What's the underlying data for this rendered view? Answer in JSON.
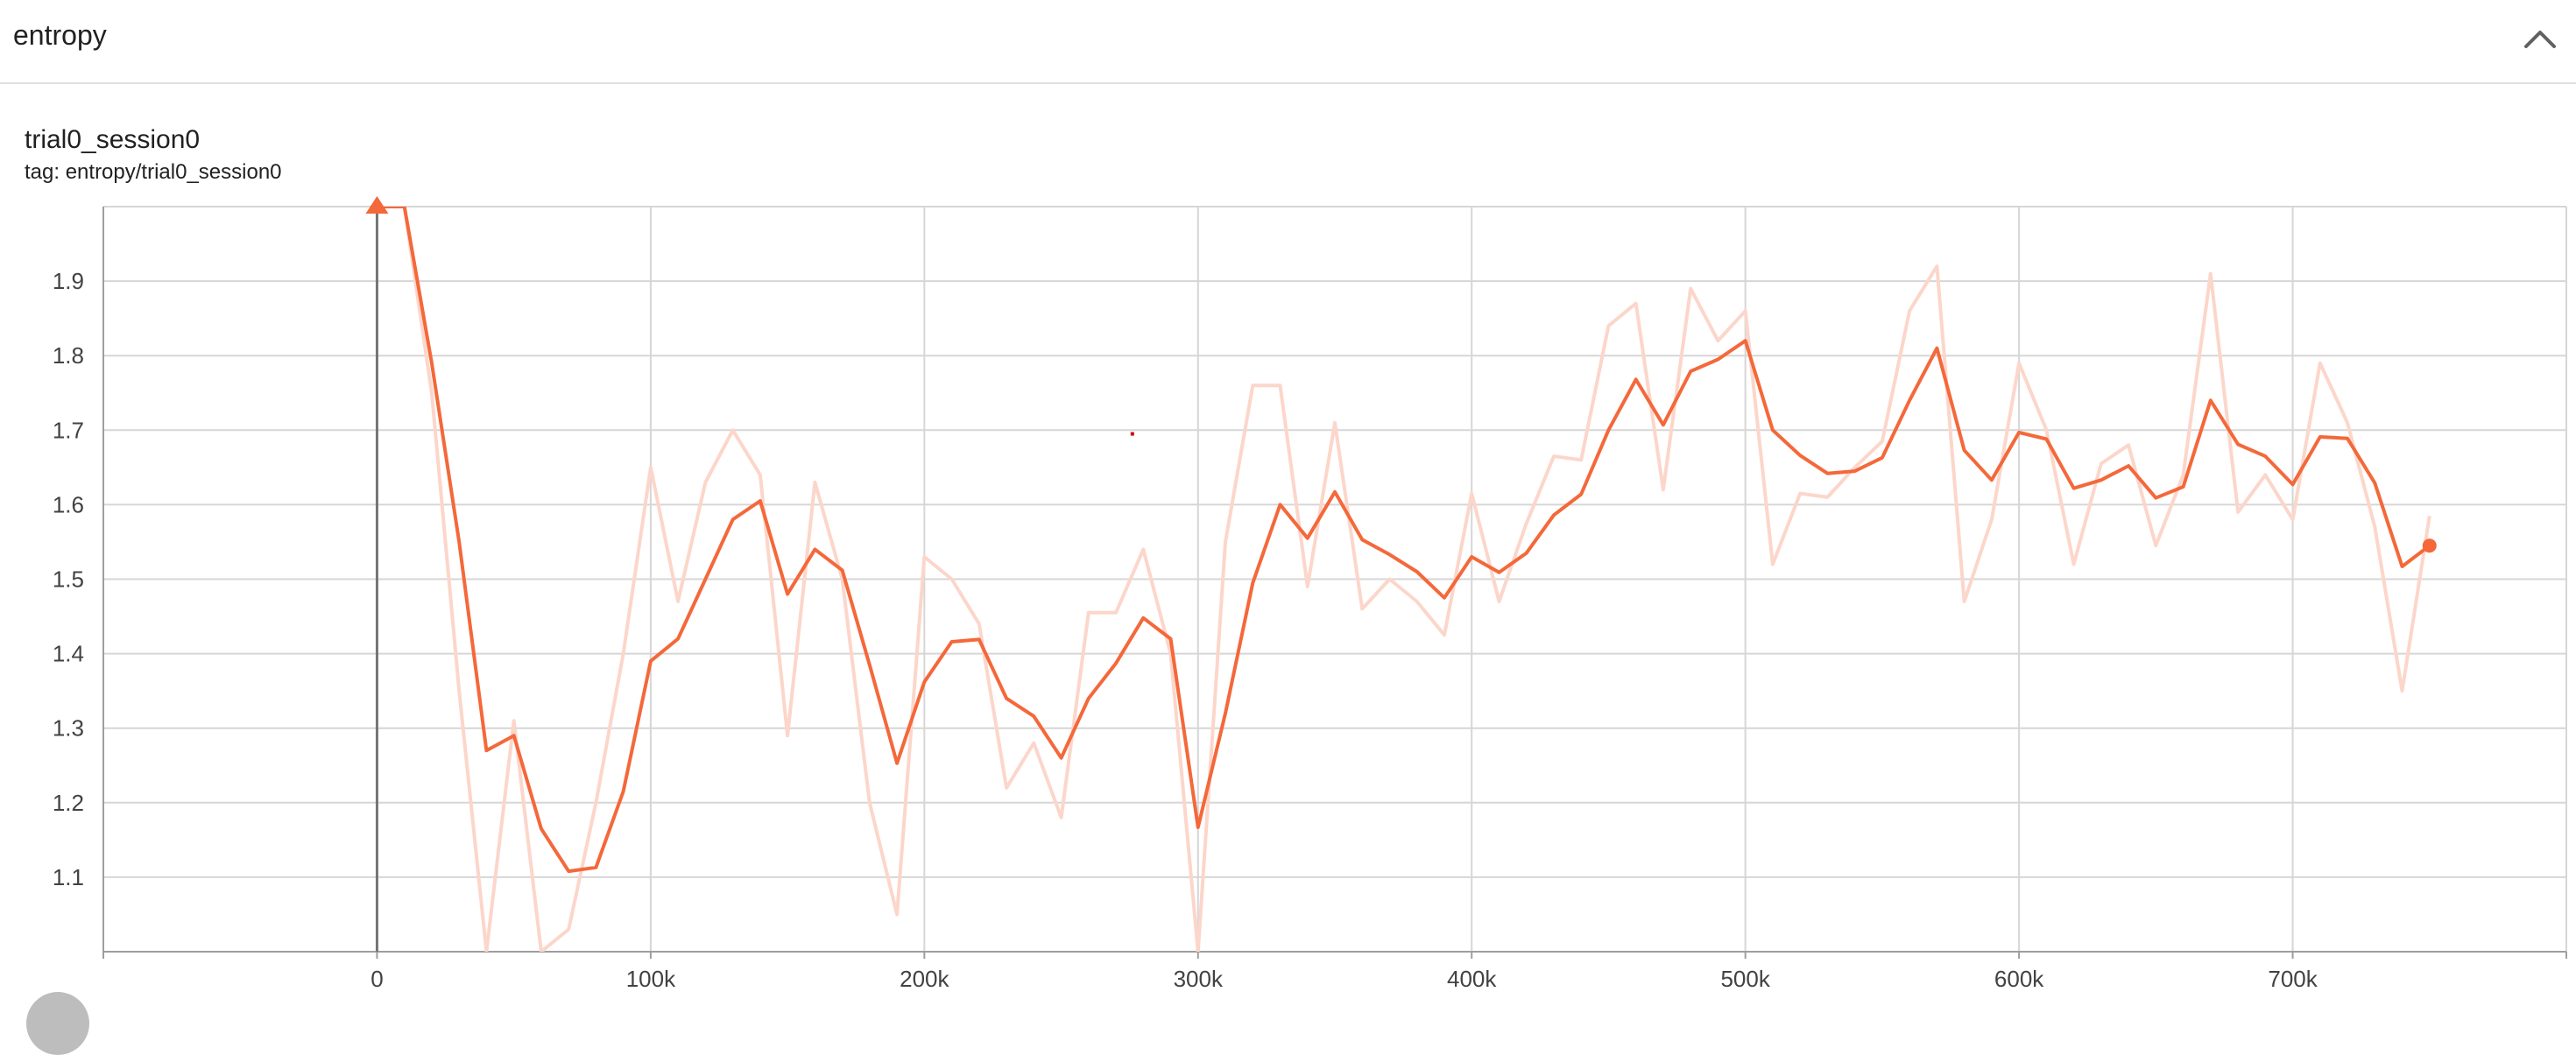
{
  "card": {
    "title": "entropy",
    "collapse_icon": "chevron-up-icon"
  },
  "run": {
    "title": "trial0_session0",
    "tag": "tag: entropy/trial0_session0"
  },
  "colors": {
    "smoothed": "#f4683a",
    "raw": "#fcd6ca",
    "grid": "#d6d6d6",
    "axis": "#9e9e9e",
    "zero_line": "#757575",
    "marker": "#cc0000"
  },
  "chart_data": {
    "type": "line",
    "title": "",
    "xlabel": "",
    "ylabel": "",
    "xlim": [
      -100000,
      800000
    ],
    "ylim": [
      1.0,
      2.0
    ],
    "grid": true,
    "x_ticks": [
      0,
      100000,
      200000,
      300000,
      400000,
      500000,
      600000,
      700000
    ],
    "x_tick_labels": [
      "0",
      "100k",
      "200k",
      "300k",
      "400k",
      "500k",
      "600k",
      "700k"
    ],
    "y_ticks": [
      1.1,
      1.2,
      1.3,
      1.4,
      1.5,
      1.6,
      1.7,
      1.8,
      1.9
    ],
    "y_tick_labels": [
      "1.1",
      "1.2",
      "1.3",
      "1.4",
      "1.5",
      "1.6",
      "1.7",
      "1.8",
      "1.9"
    ],
    "x": [
      0,
      10000,
      20000,
      30000,
      40000,
      50000,
      60000,
      70000,
      80000,
      90000,
      100000,
      110000,
      120000,
      130000,
      140000,
      150000,
      160000,
      170000,
      180000,
      190000,
      200000,
      210000,
      220000,
      230000,
      240000,
      250000,
      260000,
      270000,
      280000,
      290000,
      300000,
      310000,
      320000,
      330000,
      340000,
      350000,
      360000,
      370000,
      380000,
      390000,
      400000,
      410000,
      420000,
      430000,
      440000,
      450000,
      460000,
      470000,
      480000,
      490000,
      500000,
      510000,
      520000,
      530000,
      540000,
      550000,
      560000,
      570000,
      580000,
      590000,
      600000,
      610000,
      620000,
      630000,
      640000,
      650000,
      660000,
      670000,
      680000,
      690000,
      700000,
      710000,
      720000,
      730000,
      740000,
      750000
    ],
    "series": [
      {
        "role": "smoothed",
        "values": [
          2.0,
          2.0,
          1.79,
          1.55,
          1.27,
          1.29,
          1.165,
          1.108,
          1.113,
          1.215,
          1.39,
          1.42,
          1.5,
          1.58,
          1.605,
          1.48,
          1.54,
          1.512,
          1.385,
          1.253,
          1.362,
          1.416,
          1.419,
          1.34,
          1.316,
          1.26,
          1.34,
          1.387,
          1.448,
          1.42,
          1.167,
          1.32,
          1.495,
          1.6,
          1.555,
          1.617,
          1.553,
          1.533,
          1.51,
          1.475,
          1.53,
          1.509,
          1.535,
          1.586,
          1.614,
          1.7,
          1.768,
          1.707,
          1.779,
          1.795,
          1.82,
          1.7,
          1.666,
          1.642,
          1.645,
          1.663,
          1.74,
          1.81,
          1.673,
          1.633,
          1.697,
          1.688,
          1.622,
          1.633,
          1.652,
          1.609,
          1.624,
          1.74,
          1.681,
          1.665,
          1.627,
          1.691,
          1.689,
          1.629,
          1.517,
          1.545
        ]
      },
      {
        "role": "raw",
        "values": [
          2.0,
          2.0,
          1.75,
          1.35,
          1.0,
          1.31,
          1.0,
          1.03,
          1.2,
          1.4,
          1.65,
          1.47,
          1.63,
          1.7,
          1.64,
          1.29,
          1.63,
          1.5,
          1.2,
          1.05,
          1.53,
          1.5,
          1.44,
          1.22,
          1.28,
          1.18,
          1.455,
          1.455,
          1.54,
          1.4,
          1.0,
          1.55,
          1.76,
          1.76,
          1.49,
          1.71,
          1.46,
          1.5,
          1.47,
          1.425,
          1.615,
          1.47,
          1.575,
          1.665,
          1.66,
          1.84,
          1.87,
          1.62,
          1.89,
          1.82,
          1.86,
          1.52,
          1.615,
          1.61,
          1.65,
          1.685,
          1.86,
          1.92,
          1.47,
          1.58,
          1.79,
          1.7,
          1.52,
          1.655,
          1.68,
          1.545,
          1.64,
          1.91,
          1.59,
          1.64,
          1.58,
          1.79,
          1.71,
          1.57,
          1.35,
          1.585
        ]
      }
    ],
    "outlier_marker": {
      "x": 276000,
      "y": 1.695
    }
  }
}
